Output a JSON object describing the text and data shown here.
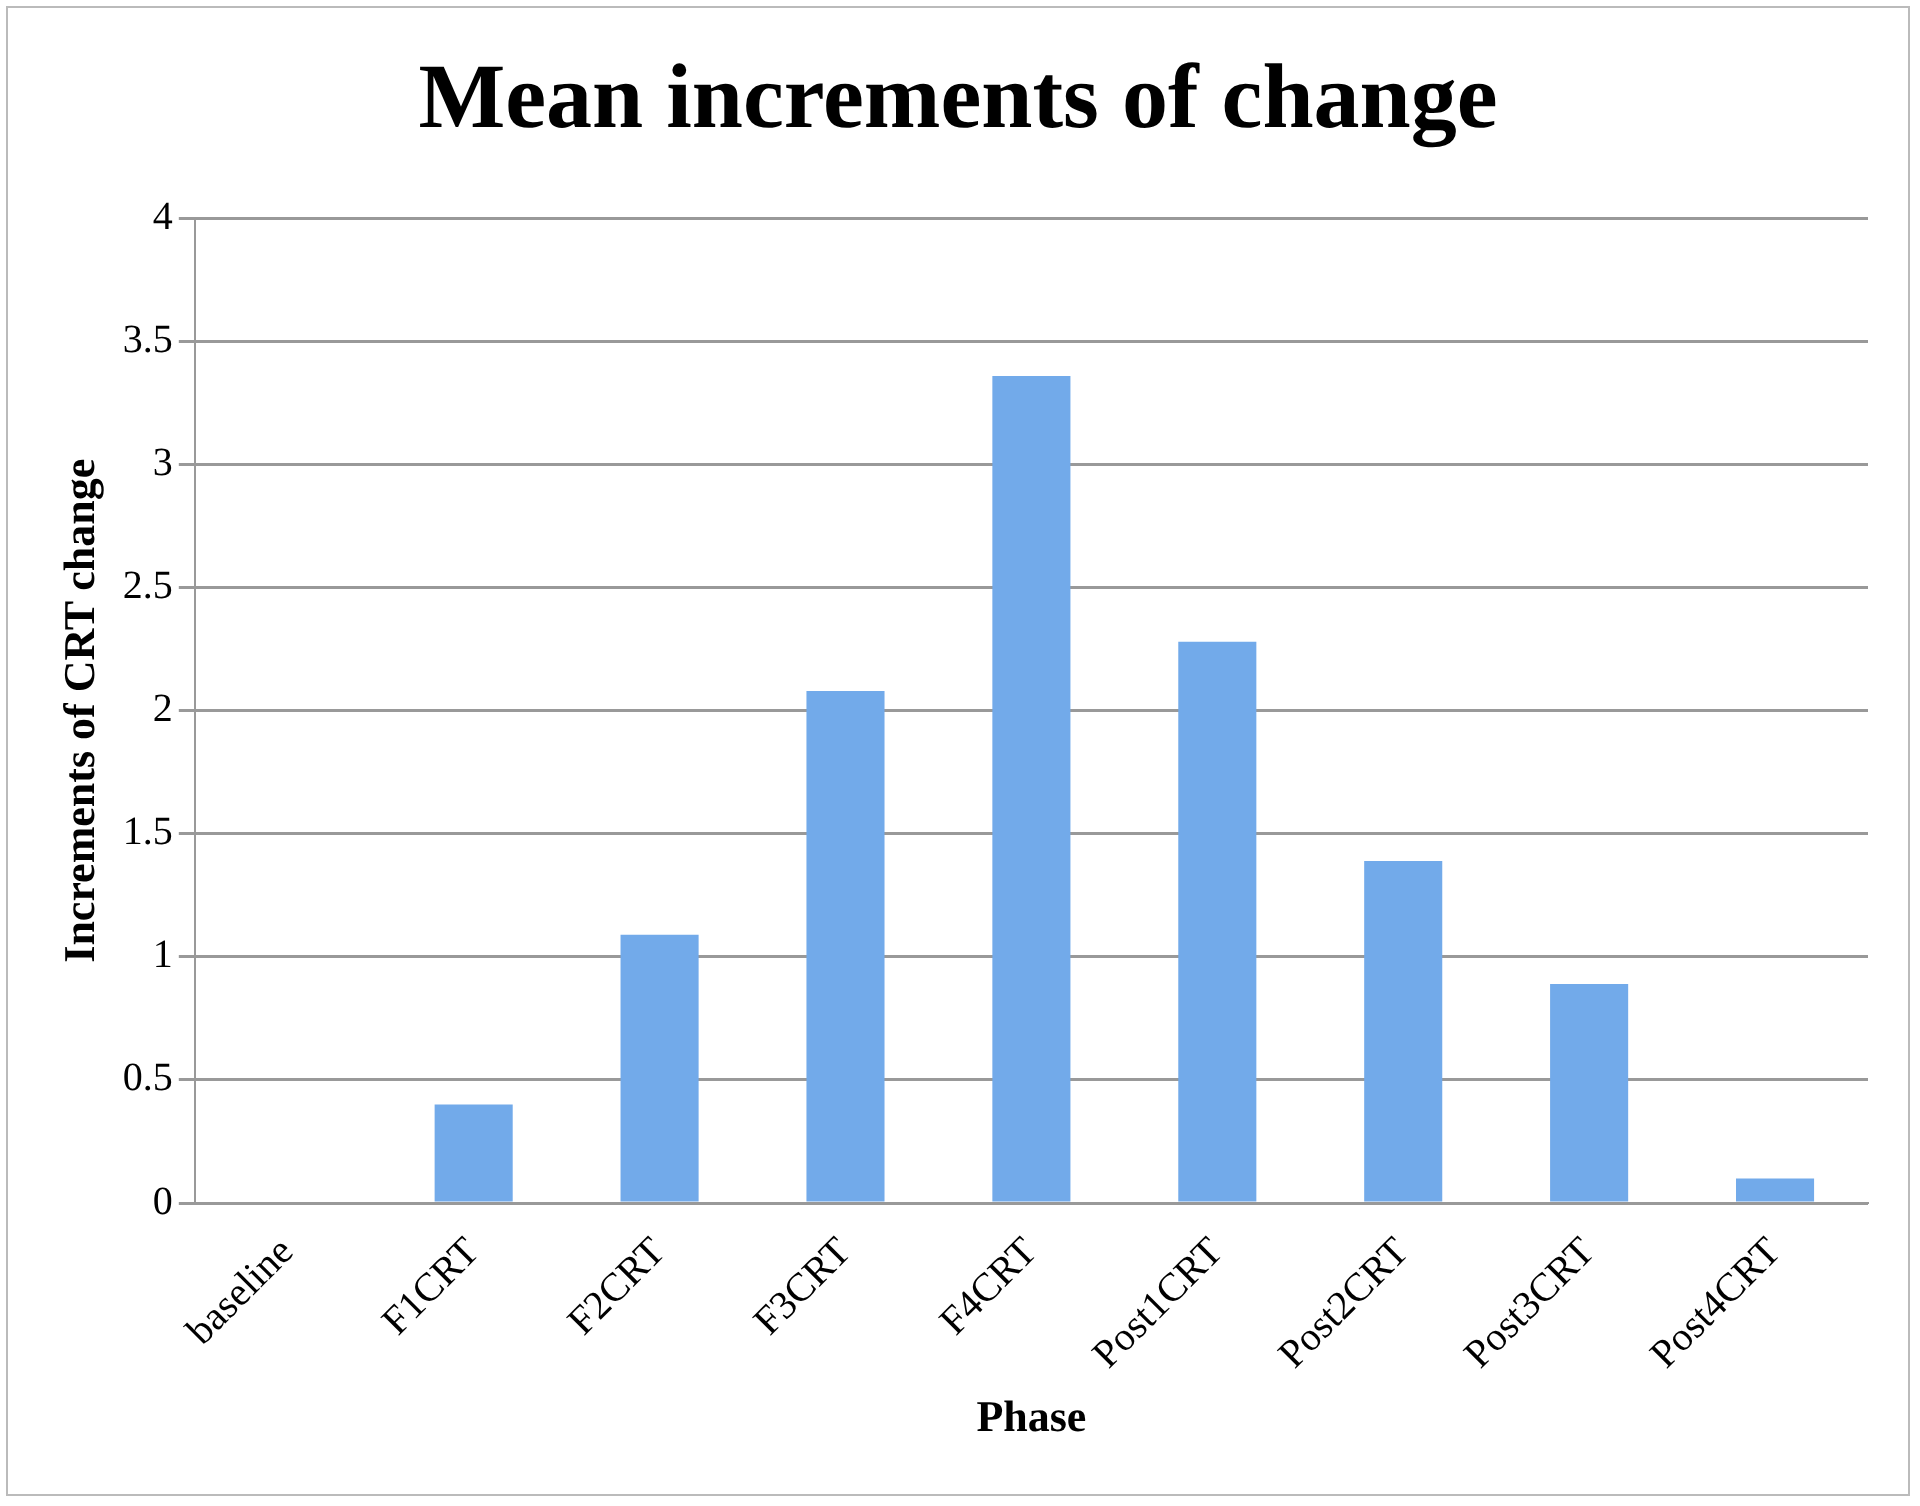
{
  "chart_data": {
    "type": "bar",
    "title": "Mean increments of change",
    "xlabel": "Phase",
    "ylabel": "Increments of CRT change",
    "categories": [
      "baseline",
      "F1CRT",
      "F2CRT",
      "F3CRT",
      "F4CRT",
      "Post1CRT",
      "Post2CRT",
      "Post3CRT",
      "Post4CRT"
    ],
    "values": [
      0,
      0.4,
      1.09,
      2.08,
      3.36,
      2.28,
      1.39,
      0.89,
      0.1
    ],
    "color": "#72aaea",
    "ylim": [
      0,
      4
    ],
    "yticks": [
      0,
      0.5,
      1,
      1.5,
      2,
      2.5,
      3,
      3.5,
      4
    ],
    "grid": "y",
    "legend": false
  }
}
